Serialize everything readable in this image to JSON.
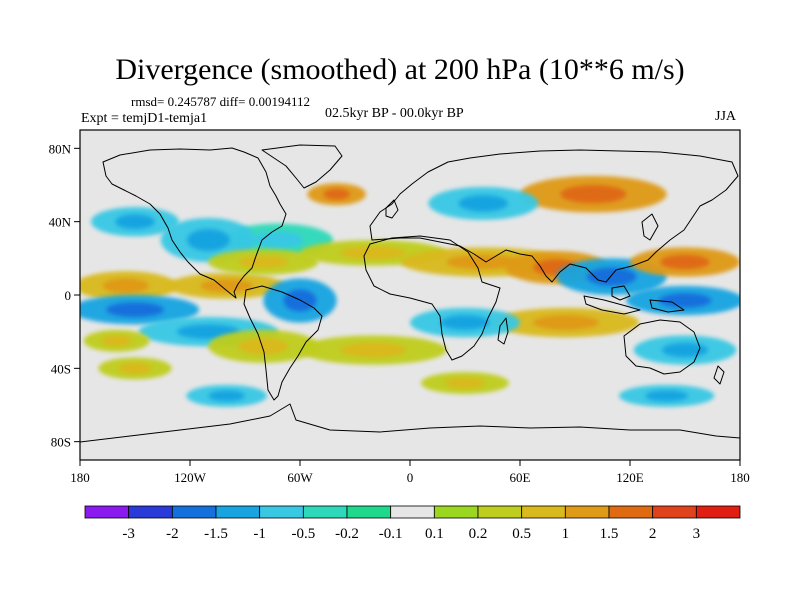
{
  "title": "Divergence (smoothed) at 200 hPa (10**6 m/s)",
  "stats_text": "rmsd= 0.245787 diff= 0.00194112",
  "experiment_text": "Expt = temjD1-temja1",
  "period_text": "02.5kyr BP - 00.0kyr BP",
  "season_text": "JJA",
  "colors": {
    "background": "#e6e6e6",
    "coastline": "#000000",
    "levels": [
      "#8a1aef",
      "#2a3ad8",
      "#1470dc",
      "#17a4e1",
      "#38c8e4",
      "#2dd9ba",
      "#1ed98c",
      "#e6e6e6",
      "#9bd620",
      "#bfcd1f",
      "#d9b91c",
      "#df9a18",
      "#df6a12",
      "#e0421b",
      "#e01f12"
    ]
  },
  "chart_data": {
    "type": "heatmap",
    "title": "Divergence (smoothed) at 200 hPa (10**6 m/s)",
    "variable": "200 hPa divergence difference (smoothed)",
    "units": "10**6 m/s",
    "season": "JJA",
    "x_axis": {
      "range": [
        -180,
        180
      ],
      "ticks": [
        -180,
        -120,
        -60,
        0,
        60,
        120,
        180
      ],
      "tick_labels": [
        "180",
        "120W",
        "60W",
        "0",
        "60E",
        "120E",
        "180"
      ]
    },
    "y_axis": {
      "range": [
        -90,
        90
      ],
      "ticks": [
        80,
        40,
        0,
        -40,
        -80
      ],
      "tick_labels": [
        "80N",
        "40N",
        "0",
        "40S",
        "80S"
      ]
    },
    "colorbar": {
      "labels": [
        "-3",
        "-2",
        "-1.5",
        "-1",
        "-0.5",
        "-0.2",
        "-0.1",
        "0.1",
        "0.2",
        "0.5",
        "1",
        "1.5",
        "2",
        "3"
      ],
      "num_bins": 15,
      "orientation": "horizontal"
    },
    "features": [
      {
        "lon": -155,
        "lat": 5,
        "rx": 28,
        "ry": 8,
        "bin": 10
      },
      {
        "lon": -100,
        "lat": 5,
        "rx": 32,
        "ry": 7,
        "bin": 10
      },
      {
        "lon": -150,
        "lat": -8,
        "rx": 35,
        "ry": 8,
        "bin": 3
      },
      {
        "lon": -110,
        "lat": -20,
        "rx": 38,
        "ry": 8,
        "bin": 4
      },
      {
        "lon": -60,
        "lat": -3,
        "rx": 20,
        "ry": 12,
        "bin": 3
      },
      {
        "lon": -72,
        "lat": 30,
        "rx": 30,
        "ry": 9,
        "bin": 5
      },
      {
        "lon": -110,
        "lat": 30,
        "rx": 26,
        "ry": 12,
        "bin": 4
      },
      {
        "lon": -150,
        "lat": 40,
        "rx": 24,
        "ry": 8,
        "bin": 4
      },
      {
        "lon": -80,
        "lat": 18,
        "rx": 30,
        "ry": 7,
        "bin": 9
      },
      {
        "lon": -20,
        "lat": 23,
        "rx": 40,
        "ry": 7,
        "bin": 9
      },
      {
        "lon": 40,
        "lat": 18,
        "rx": 45,
        "ry": 8,
        "bin": 10
      },
      {
        "lon": 80,
        "lat": 15,
        "rx": 28,
        "ry": 9,
        "bin": 11
      },
      {
        "lon": 110,
        "lat": 10,
        "rx": 30,
        "ry": 10,
        "bin": 3
      },
      {
        "lon": 150,
        "lat": 18,
        "rx": 30,
        "ry": 8,
        "bin": 11
      },
      {
        "lon": 150,
        "lat": -3,
        "rx": 32,
        "ry": 8,
        "bin": 3
      },
      {
        "lon": 85,
        "lat": -15,
        "rx": 40,
        "ry": 8,
        "bin": 10
      },
      {
        "lon": 30,
        "lat": -15,
        "rx": 30,
        "ry": 8,
        "bin": 4
      },
      {
        "lon": 100,
        "lat": 55,
        "rx": 40,
        "ry": 10,
        "bin": 11
      },
      {
        "lon": 40,
        "lat": 50,
        "rx": 30,
        "ry": 9,
        "bin": 4
      },
      {
        "lon": -20,
        "lat": -30,
        "rx": 40,
        "ry": 8,
        "bin": 9
      },
      {
        "lon": -80,
        "lat": -28,
        "rx": 30,
        "ry": 9,
        "bin": 9
      },
      {
        "lon": 150,
        "lat": -30,
        "rx": 28,
        "ry": 8,
        "bin": 4
      },
      {
        "lon": -150,
        "lat": -40,
        "rx": 20,
        "ry": 6,
        "bin": 9
      },
      {
        "lon": -100,
        "lat": -55,
        "rx": 22,
        "ry": 6,
        "bin": 4
      },
      {
        "lon": 30,
        "lat": -48,
        "rx": 24,
        "ry": 6,
        "bin": 9
      },
      {
        "lon": 140,
        "lat": -55,
        "rx": 26,
        "ry": 6,
        "bin": 4
      },
      {
        "lon": -160,
        "lat": -25,
        "rx": 18,
        "ry": 6,
        "bin": 9
      },
      {
        "lon": -40,
        "lat": 55,
        "rx": 16,
        "ry": 6,
        "bin": 11
      }
    ]
  }
}
